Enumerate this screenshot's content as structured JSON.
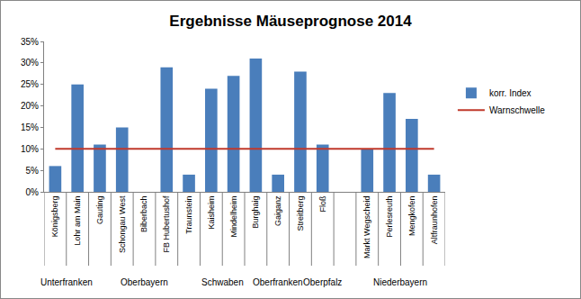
{
  "chart_data": {
    "type": "bar",
    "title": "Ergebnisse Mäuseprognose 2014",
    "categories": [
      "Königsberg",
      "Lohr am Main",
      "Gauting",
      "Schongau West",
      "Biberbach",
      "FB Hubertushof",
      "Traunstein",
      "Kaisheim",
      "Mindelheim",
      "Burghaig",
      "Gaiganz",
      "Streitberg",
      "Floß",
      null,
      "Markt Wegscheid",
      "Perlesreuth",
      "Mengkofen",
      "Altfraunhofen"
    ],
    "series": [
      {
        "name": "korr. Index",
        "type": "bar",
        "color": "#4a7ebb",
        "values": [
          6,
          25,
          11,
          15,
          null,
          29,
          4,
          24,
          27,
          31,
          4,
          28,
          11,
          null,
          10,
          23,
          17,
          4
        ]
      },
      {
        "name": "Warnschwelle",
        "type": "line",
        "color": "#c0392b",
        "values": [
          10,
          10,
          10,
          10,
          10,
          10,
          10,
          10,
          10,
          10,
          10,
          10,
          10,
          10,
          10,
          10,
          10,
          10
        ]
      }
    ],
    "groups": [
      {
        "name": "Unterfranken",
        "categories": [
          "Königsberg",
          "Lohr am Main"
        ]
      },
      {
        "name": "Oberbayern",
        "categories": [
          "Gauting",
          "Schongau West",
          "Biberbach",
          "FB Hubertushof",
          "Traunstein"
        ]
      },
      {
        "name": "Schwaben",
        "categories": [
          "Kaisheim",
          "Mindelheim"
        ]
      },
      {
        "name": "Oberfranken",
        "categories": [
          "Burghaig",
          "Gaiganz",
          "Streitberg"
        ]
      },
      {
        "name": "Oberpfalz",
        "categories": [
          "Floß"
        ]
      },
      {
        "name": "Niederbayern",
        "categories": [
          "Markt Wegscheid",
          "Perlesreuth",
          "Mengkofen",
          "Altfraunhofen"
        ]
      }
    ],
    "ylim": [
      0,
      35
    ],
    "yticks": [
      {
        "value": 0,
        "label": "0%"
      },
      {
        "value": 5,
        "label": "5%"
      },
      {
        "value": 10,
        "label": "10%"
      },
      {
        "value": 15,
        "label": "15%"
      },
      {
        "value": 20,
        "label": "20%"
      },
      {
        "value": 25,
        "label": "25%"
      },
      {
        "value": 30,
        "label": "30%"
      },
      {
        "value": 35,
        "label": "35%"
      }
    ],
    "grid": false,
    "legend": "right"
  }
}
